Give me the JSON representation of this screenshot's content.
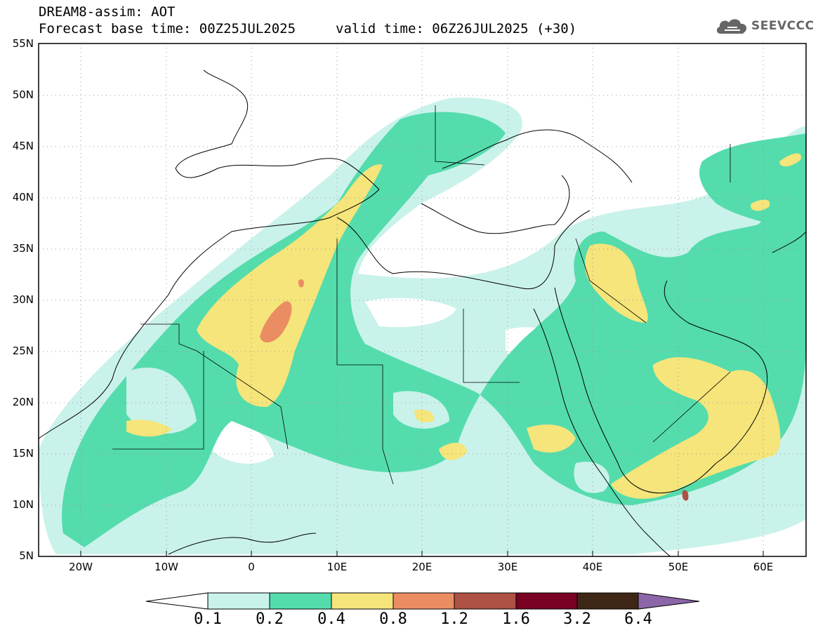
{
  "title": {
    "line1": "DREAM8-assim: AOT",
    "line2": "Forecast base time: 00Z25JUL2025",
    "line3": "valid time: 06Z26JUL2025 (+30)"
  },
  "logo": {
    "text": "SEEVCCC",
    "icon": "cloud-icon"
  },
  "map": {
    "lat_labels": [
      "55N",
      "50N",
      "45N",
      "40N",
      "35N",
      "30N",
      "25N",
      "20N",
      "15N",
      "10N",
      "5N"
    ],
    "lon_labels": [
      "20W",
      "10W",
      "0",
      "10E",
      "20E",
      "30E",
      "40E",
      "50E",
      "60E"
    ],
    "lon_range": [
      -25,
      65
    ],
    "lat_range": [
      5,
      55
    ],
    "grid": "dotted"
  },
  "colorbar": {
    "labels": [
      "0.1",
      "0.2",
      "0.4",
      "0.8",
      "1.2",
      "1.6",
      "3.2",
      "6.4"
    ],
    "colors": [
      "#ffffff",
      "#c9f2ea",
      "#54dcad",
      "#f5e57a",
      "#eb8d62",
      "#ad5244",
      "#7a0024",
      "#3e2716",
      "#8b66a8"
    ]
  }
}
